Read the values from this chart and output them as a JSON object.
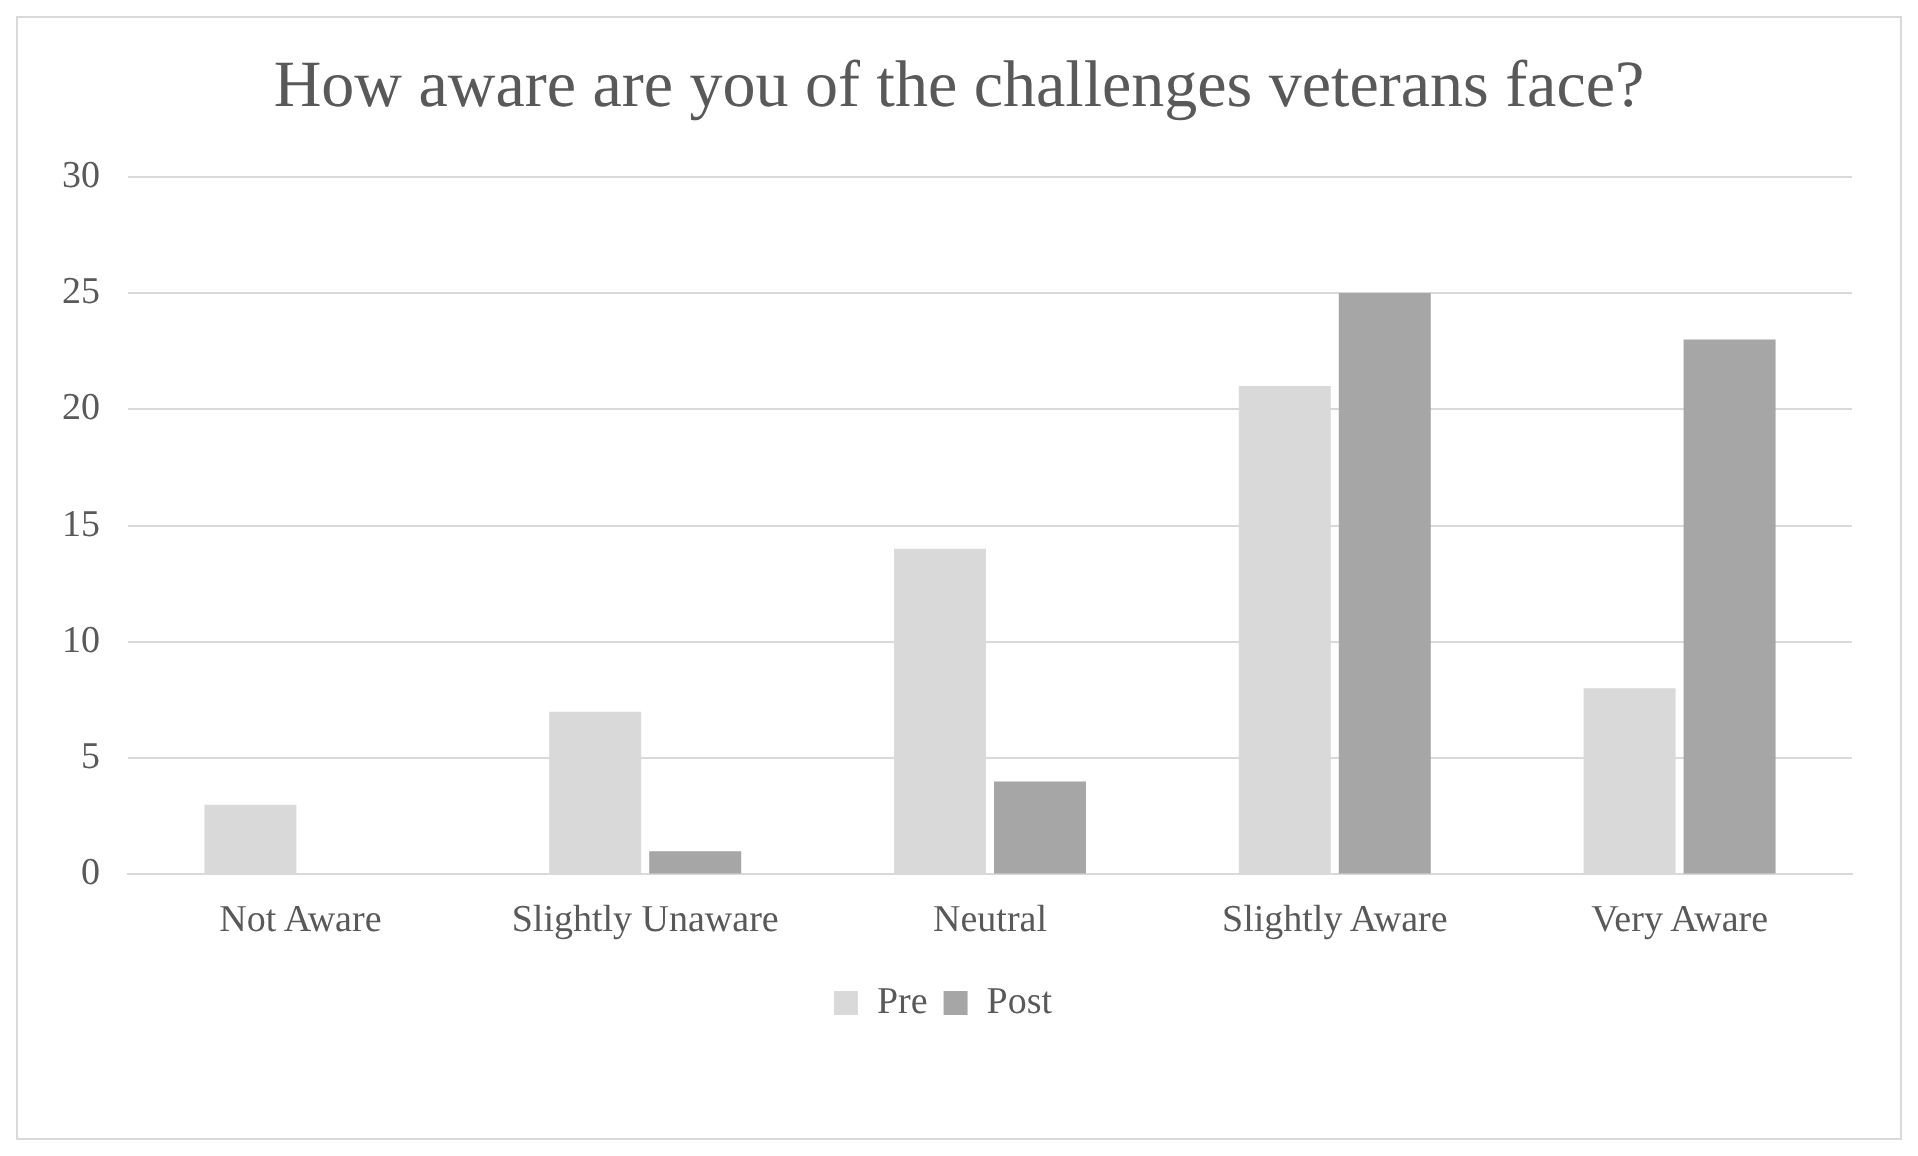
{
  "chart_data": {
    "type": "bar",
    "title": "How aware are you of the challenges veterans face?",
    "categories": [
      "Not Aware",
      "Slightly Unaware",
      "Neutral",
      "Slightly Aware",
      "Very Aware"
    ],
    "series": [
      {
        "name": "Pre",
        "color": "#d9d9d9",
        "values": [
          3,
          7,
          14,
          21,
          8
        ]
      },
      {
        "name": "Post",
        "color": "#a6a6a6",
        "values": [
          0,
          1,
          4,
          25,
          23
        ]
      }
    ],
    "ylim": [
      0,
      30
    ],
    "yticks": [
      0,
      5,
      10,
      15,
      20,
      25,
      30
    ],
    "grid": "y",
    "legend": "bottom"
  }
}
